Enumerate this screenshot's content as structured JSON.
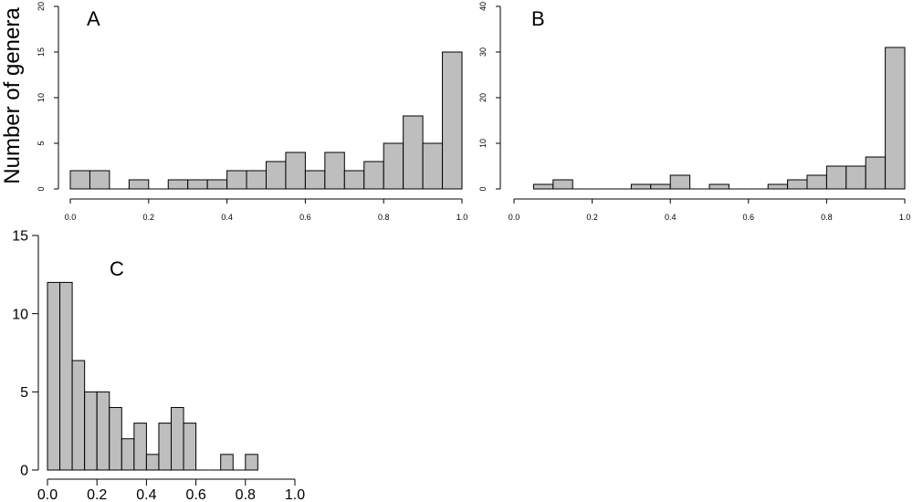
{
  "figure": {
    "ylabel": "Number of genera"
  },
  "chart_data": [
    {
      "panel": "A",
      "type": "bar",
      "title": "A",
      "xlabel": "",
      "ylabel": "Number of genera",
      "xlim": [
        0,
        1
      ],
      "ylim": [
        0,
        20
      ],
      "xticks": [
        "0.0",
        "0.2",
        "0.4",
        "0.6",
        "0.8",
        "1.0"
      ],
      "yticks": [
        "0",
        "5",
        "10",
        "15",
        "20"
      ],
      "bin_width": 0.05,
      "bin_starts": [
        0.0,
        0.05,
        0.1,
        0.15,
        0.2,
        0.25,
        0.3,
        0.35,
        0.4,
        0.45,
        0.5,
        0.55,
        0.6,
        0.65,
        0.7,
        0.75,
        0.8,
        0.85,
        0.9,
        0.95
      ],
      "values": [
        2,
        2,
        0,
        1,
        0,
        1,
        1,
        1,
        2,
        2,
        3,
        4,
        2,
        4,
        2,
        3,
        5,
        8,
        5,
        15
      ],
      "grid": false
    },
    {
      "panel": "B",
      "type": "bar",
      "title": "B",
      "xlabel": "",
      "ylabel": "",
      "xlim": [
        0,
        1
      ],
      "ylim": [
        0,
        40
      ],
      "xticks": [
        "0.0",
        "0.2",
        "0.4",
        "0.6",
        "0.8",
        "1.0"
      ],
      "yticks": [
        "0",
        "10",
        "20",
        "30",
        "40"
      ],
      "bin_width": 0.05,
      "bin_starts": [
        0.05,
        0.1,
        0.15,
        0.2,
        0.25,
        0.3,
        0.35,
        0.4,
        0.45,
        0.5,
        0.55,
        0.6,
        0.65,
        0.7,
        0.75,
        0.8,
        0.85,
        0.9,
        0.95
      ],
      "values": [
        1,
        2,
        0,
        0,
        0,
        1,
        1,
        3,
        0,
        1,
        0,
        0,
        1,
        2,
        3,
        5,
        5,
        7,
        31
      ],
      "grid": false
    },
    {
      "panel": "C",
      "type": "bar",
      "title": "C",
      "xlabel": "",
      "ylabel": "",
      "xlim": [
        0,
        1
      ],
      "ylim": [
        0,
        15
      ],
      "xticks": [
        "0.0",
        "0.2",
        "0.4",
        "0.6",
        "0.8",
        "1.0"
      ],
      "yticks": [
        "0",
        "5",
        "10",
        "15"
      ],
      "bin_width": 0.05,
      "bin_starts": [
        0.0,
        0.05,
        0.1,
        0.15,
        0.2,
        0.25,
        0.3,
        0.35,
        0.4,
        0.45,
        0.5,
        0.55,
        0.6,
        0.65,
        0.7,
        0.75,
        0.8
      ],
      "values": [
        12,
        12,
        7,
        5,
        5,
        4,
        2,
        3,
        1,
        3,
        4,
        3,
        0,
        0,
        1,
        0,
        1
      ],
      "grid": false
    }
  ]
}
